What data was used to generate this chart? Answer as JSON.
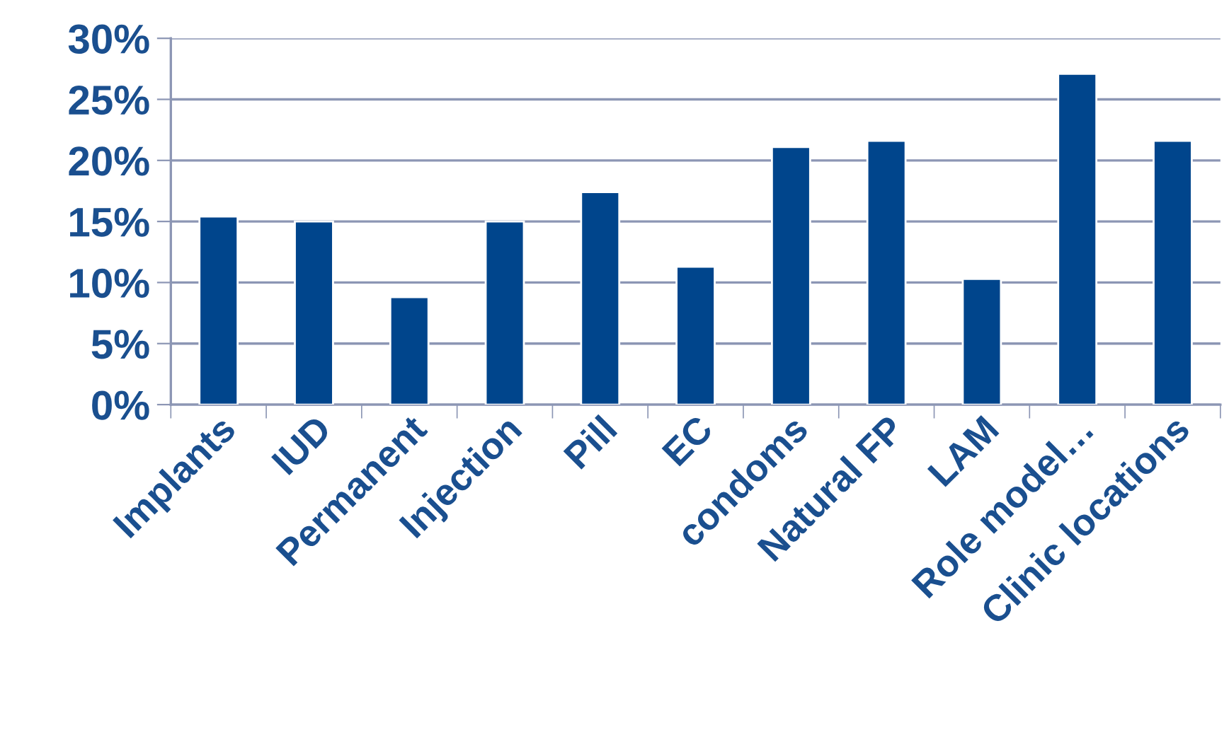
{
  "chart_data": {
    "type": "bar",
    "categories": [
      "Implants",
      "IUD",
      "Permanent",
      "Injection",
      "Pill",
      "EC",
      "condoms",
      "Natural FP",
      "LAM",
      "Role model…",
      "Clinic locations"
    ],
    "values": [
      15.4,
      15.0,
      8.8,
      15.0,
      17.4,
      11.3,
      21.1,
      21.6,
      10.3,
      27.1,
      21.6
    ],
    "color": "#00458c",
    "ylim": [
      0,
      30
    ],
    "yticks": [
      {
        "value": 0,
        "label": "0%"
      },
      {
        "value": 5,
        "label": "5%"
      },
      {
        "value": 10,
        "label": "10%"
      },
      {
        "value": 15,
        "label": "15%"
      },
      {
        "value": 20,
        "label": "20%"
      },
      {
        "value": 25,
        "label": "25%"
      },
      {
        "value": 30,
        "label": "30%"
      }
    ],
    "grid": "y",
    "legend": false
  }
}
